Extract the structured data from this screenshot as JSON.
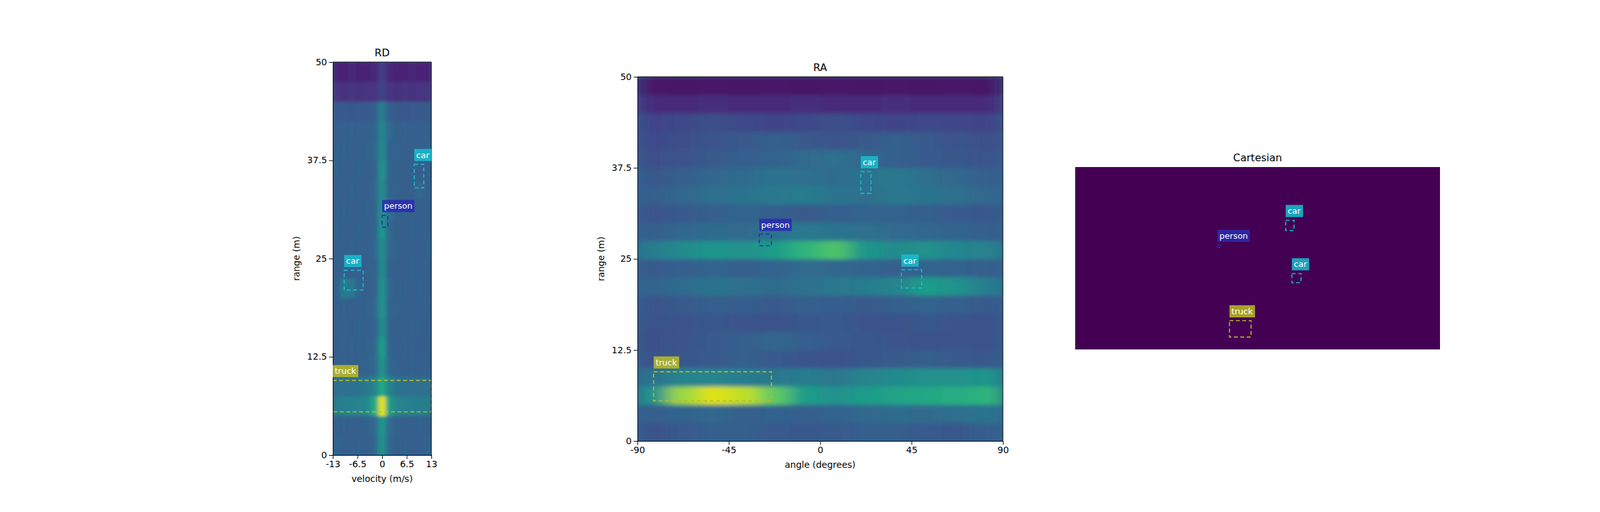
{
  "chart_data": [
    {
      "type": "heatmap",
      "title": "RD",
      "x_label": "velocity (m/s)",
      "y_label": "range (m)",
      "xlim": [
        -13,
        13
      ],
      "ylim": [
        0,
        50
      ],
      "xticks": [
        -13,
        -6.5,
        0,
        6.5,
        13
      ],
      "yticks": [
        0,
        12.5,
        25,
        37.5,
        50
      ],
      "cells": [
        [
          0.32,
          0.3,
          0.3,
          0.31,
          0.3,
          0.33,
          0.5,
          0.33,
          0.3,
          0.31,
          0.3,
          0.3,
          0.32
        ],
        [
          0.3,
          0.31,
          0.3,
          0.3,
          0.32,
          0.34,
          0.52,
          0.34,
          0.31,
          0.3,
          0.3,
          0.31,
          0.3
        ],
        [
          0.42,
          0.43,
          0.44,
          0.45,
          0.47,
          0.6,
          0.95,
          0.55,
          0.45,
          0.44,
          0.43,
          0.42,
          0.42
        ],
        [
          0.36,
          0.36,
          0.37,
          0.38,
          0.4,
          0.45,
          0.6,
          0.44,
          0.38,
          0.37,
          0.36,
          0.36,
          0.36
        ],
        [
          0.3,
          0.31,
          0.3,
          0.31,
          0.32,
          0.34,
          0.5,
          0.33,
          0.31,
          0.3,
          0.31,
          0.3,
          0.3
        ],
        [
          0.29,
          0.3,
          0.31,
          0.3,
          0.31,
          0.33,
          0.55,
          0.32,
          0.3,
          0.31,
          0.3,
          0.29,
          0.3
        ],
        [
          0.3,
          0.3,
          0.29,
          0.31,
          0.3,
          0.32,
          0.48,
          0.32,
          0.3,
          0.3,
          0.31,
          0.3,
          0.29
        ],
        [
          0.3,
          0.31,
          0.3,
          0.3,
          0.31,
          0.33,
          0.5,
          0.32,
          0.31,
          0.3,
          0.3,
          0.3,
          0.3
        ],
        [
          0.31,
          0.42,
          0.4,
          0.31,
          0.3,
          0.32,
          0.5,
          0.33,
          0.3,
          0.31,
          0.3,
          0.31,
          0.3
        ],
        [
          0.3,
          0.31,
          0.3,
          0.3,
          0.31,
          0.32,
          0.47,
          0.32,
          0.3,
          0.3,
          0.31,
          0.3,
          0.3
        ],
        [
          0.3,
          0.3,
          0.31,
          0.3,
          0.3,
          0.33,
          0.48,
          0.33,
          0.31,
          0.3,
          0.3,
          0.3,
          0.31
        ],
        [
          0.31,
          0.3,
          0.3,
          0.31,
          0.3,
          0.32,
          0.52,
          0.33,
          0.3,
          0.3,
          0.31,
          0.3,
          0.3
        ],
        [
          0.3,
          0.31,
          0.3,
          0.3,
          0.31,
          0.32,
          0.5,
          0.38,
          0.3,
          0.31,
          0.3,
          0.3,
          0.3
        ],
        [
          0.3,
          0.3,
          0.31,
          0.3,
          0.3,
          0.33,
          0.48,
          0.32,
          0.31,
          0.3,
          0.3,
          0.34,
          0.3
        ],
        [
          0.31,
          0.3,
          0.3,
          0.31,
          0.3,
          0.32,
          0.5,
          0.32,
          0.3,
          0.3,
          0.31,
          0.3,
          0.3
        ],
        [
          0.3,
          0.31,
          0.3,
          0.3,
          0.31,
          0.33,
          0.47,
          0.32,
          0.31,
          0.3,
          0.3,
          0.3,
          0.31
        ],
        [
          0.3,
          0.3,
          0.31,
          0.3,
          0.3,
          0.32,
          0.46,
          0.33,
          0.3,
          0.31,
          0.3,
          0.3,
          0.3
        ],
        [
          0.28,
          0.28,
          0.27,
          0.28,
          0.28,
          0.3,
          0.42,
          0.3,
          0.28,
          0.27,
          0.28,
          0.28,
          0.28
        ],
        [
          0.15,
          0.14,
          0.15,
          0.14,
          0.15,
          0.15,
          0.2,
          0.15,
          0.14,
          0.15,
          0.14,
          0.15,
          0.15
        ],
        [
          0.1,
          0.1,
          0.11,
          0.1,
          0.1,
          0.11,
          0.18,
          0.11,
          0.1,
          0.1,
          0.11,
          0.1,
          0.1
        ]
      ],
      "boxes": [
        {
          "label": "car",
          "color": "#17becf",
          "x": [
            8.5,
            11
          ],
          "y": [
            34,
            37
          ]
        },
        {
          "label": "person",
          "color": "#2a2ab0",
          "x": [
            0,
            1.5
          ],
          "y": [
            29,
            30.5
          ]
        },
        {
          "label": "car",
          "color": "#17becf",
          "x": [
            -10,
            -5
          ],
          "y": [
            21,
            23.5
          ]
        },
        {
          "label": "truck",
          "color": "#bcbd22",
          "x": [
            -13,
            13
          ],
          "y": [
            5.5,
            9.5
          ]
        }
      ]
    },
    {
      "type": "heatmap",
      "title": "RA",
      "x_label": "angle (degrees)",
      "y_label": "range (m)",
      "xlim": [
        -90,
        90
      ],
      "ylim": [
        0,
        50
      ],
      "xticks": [
        -90,
        -45,
        0,
        45,
        90
      ],
      "yticks": [
        0,
        12.5,
        25,
        37.5,
        50
      ],
      "cells": [
        [
          0.25,
          0.28,
          0.3,
          0.3,
          0.28,
          0.27,
          0.28,
          0.3,
          0.3,
          0.28,
          0.27,
          0.3
        ],
        [
          0.3,
          0.32,
          0.33,
          0.3,
          0.31,
          0.3,
          0.32,
          0.33,
          0.35,
          0.34,
          0.36,
          0.38
        ],
        [
          0.5,
          0.85,
          0.95,
          0.9,
          0.75,
          0.55,
          0.5,
          0.55,
          0.58,
          0.6,
          0.62,
          0.65
        ],
        [
          0.38,
          0.45,
          0.45,
          0.42,
          0.4,
          0.42,
          0.4,
          0.45,
          0.48,
          0.5,
          0.5,
          0.52
        ],
        [
          0.25,
          0.27,
          0.28,
          0.3,
          0.28,
          0.26,
          0.25,
          0.27,
          0.28,
          0.3,
          0.28,
          0.27
        ],
        [
          0.24,
          0.26,
          0.28,
          0.3,
          0.33,
          0.3,
          0.28,
          0.27,
          0.26,
          0.25,
          0.26,
          0.25
        ],
        [
          0.25,
          0.26,
          0.27,
          0.26,
          0.25,
          0.27,
          0.28,
          0.26,
          0.25,
          0.27,
          0.26,
          0.25
        ],
        [
          0.26,
          0.28,
          0.3,
          0.29,
          0.28,
          0.3,
          0.29,
          0.28,
          0.3,
          0.32,
          0.3,
          0.28
        ],
        [
          0.32,
          0.35,
          0.38,
          0.36,
          0.35,
          0.37,
          0.4,
          0.42,
          0.45,
          0.55,
          0.5,
          0.42
        ],
        [
          0.28,
          0.3,
          0.32,
          0.3,
          0.32,
          0.34,
          0.33,
          0.32,
          0.3,
          0.32,
          0.31,
          0.3
        ],
        [
          0.42,
          0.48,
          0.52,
          0.5,
          0.55,
          0.65,
          0.72,
          0.52,
          0.48,
          0.5,
          0.46,
          0.44
        ],
        [
          0.3,
          0.33,
          0.35,
          0.34,
          0.38,
          0.4,
          0.38,
          0.36,
          0.34,
          0.33,
          0.32,
          0.3
        ],
        [
          0.26,
          0.28,
          0.3,
          0.32,
          0.3,
          0.28,
          0.3,
          0.32,
          0.31,
          0.3,
          0.28,
          0.27
        ],
        [
          0.3,
          0.33,
          0.36,
          0.38,
          0.4,
          0.42,
          0.38,
          0.36,
          0.4,
          0.38,
          0.36,
          0.33
        ],
        [
          0.27,
          0.3,
          0.33,
          0.35,
          0.38,
          0.36,
          0.35,
          0.38,
          0.4,
          0.36,
          0.33,
          0.3
        ],
        [
          0.24,
          0.26,
          0.28,
          0.3,
          0.32,
          0.34,
          0.36,
          0.33,
          0.3,
          0.28,
          0.27,
          0.26
        ],
        [
          0.22,
          0.24,
          0.26,
          0.28,
          0.3,
          0.28,
          0.26,
          0.28,
          0.3,
          0.28,
          0.26,
          0.24
        ],
        [
          0.2,
          0.22,
          0.24,
          0.22,
          0.2,
          0.22,
          0.24,
          0.22,
          0.2,
          0.22,
          0.21,
          0.2
        ],
        [
          0.12,
          0.12,
          0.13,
          0.12,
          0.12,
          0.13,
          0.12,
          0.12,
          0.13,
          0.12,
          0.12,
          0.12
        ],
        [
          0.06,
          0.05,
          0.06,
          0.05,
          0.06,
          0.05,
          0.06,
          0.05,
          0.06,
          0.05,
          0.06,
          0.05
        ]
      ],
      "boxes": [
        {
          "label": "car",
          "color": "#17becf",
          "x": [
            20,
            25
          ],
          "y": [
            34,
            37
          ]
        },
        {
          "label": "person",
          "color": "#2a2ab0",
          "x": [
            -30,
            -24
          ],
          "y": [
            26.8,
            28.4
          ]
        },
        {
          "label": "car",
          "color": "#17becf",
          "x": [
            40,
            50
          ],
          "y": [
            21,
            23.5
          ]
        },
        {
          "label": "truck",
          "color": "#bcbd22",
          "x": [
            -82,
            -24
          ],
          "y": [
            5.5,
            9.5
          ]
        }
      ]
    },
    {
      "type": "boxes",
      "title": "Cartesian",
      "xlim": [
        -50,
        50
      ],
      "ylim": [
        0,
        50
      ],
      "tick_labels": false,
      "boxes": [
        {
          "label": "car",
          "color": "#17becf",
          "x": [
            7.7,
            10
          ],
          "y": [
            32.6,
            35.4
          ]
        },
        {
          "label": "person",
          "color": "#2a2ab0",
          "x": [
            -11,
            -10
          ],
          "y": [
            28,
            28.6
          ]
        },
        {
          "label": "car",
          "color": "#17becf",
          "x": [
            9.4,
            11.9
          ],
          "y": [
            18.3,
            20.8
          ]
        },
        {
          "label": "truck",
          "color": "#bcbd22",
          "x": [
            -7.7,
            -1.8
          ],
          "y": [
            3.4,
            7.9
          ]
        }
      ]
    }
  ]
}
